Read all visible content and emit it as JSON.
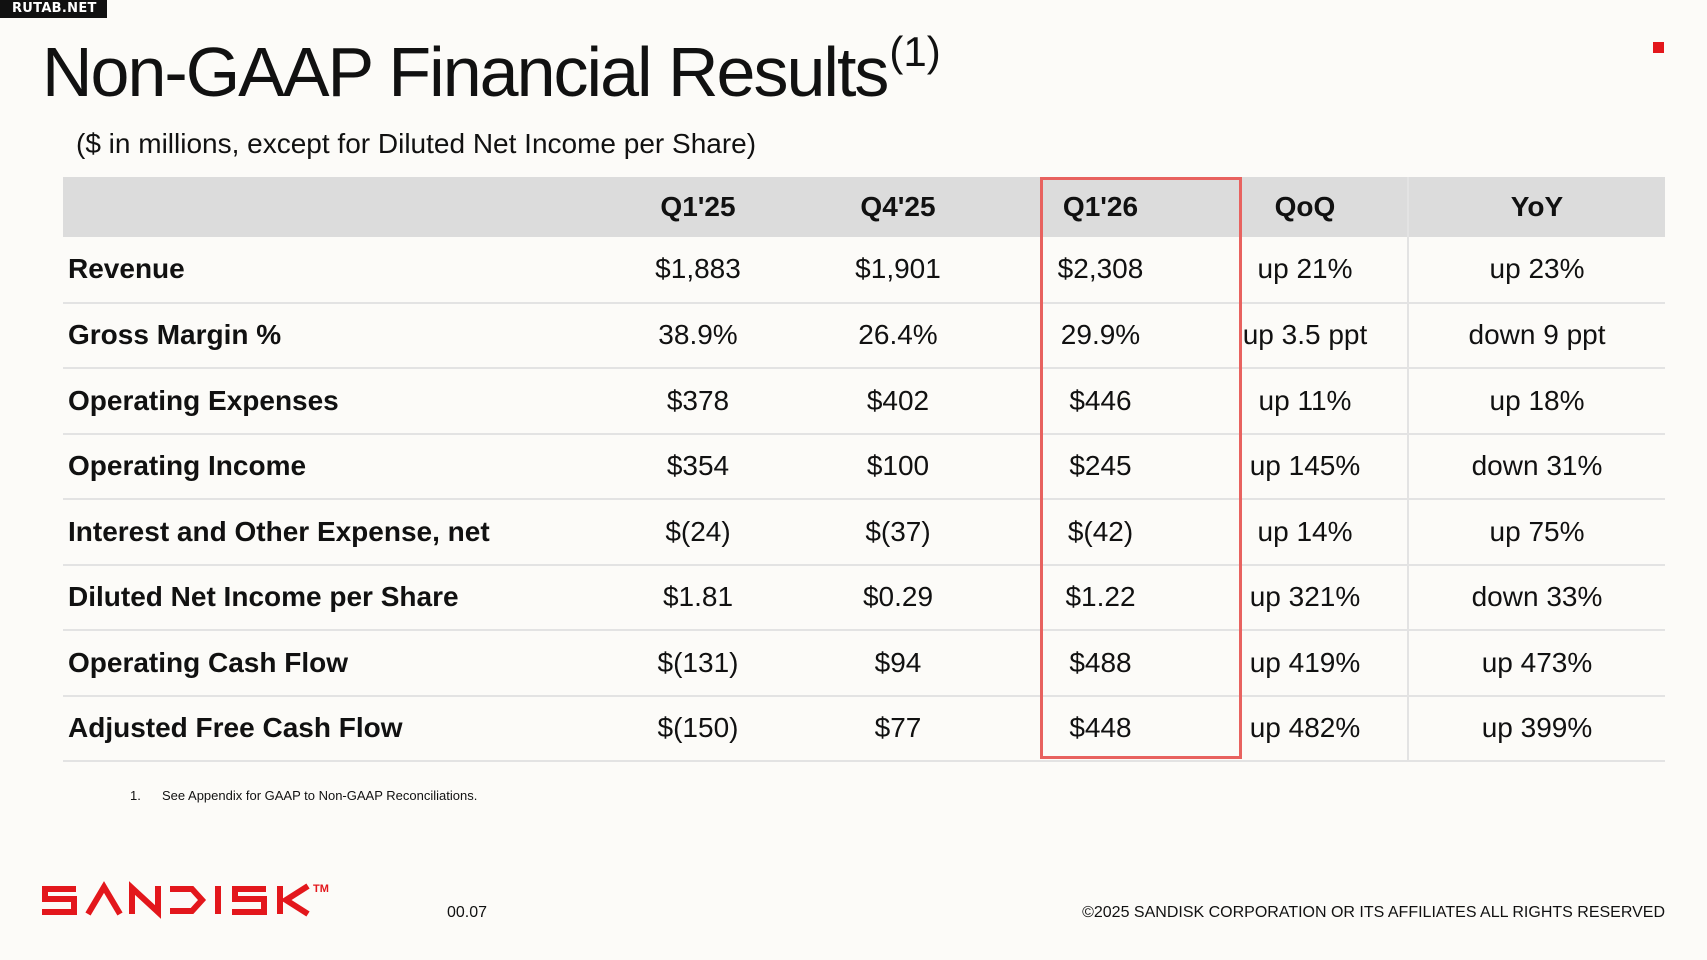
{
  "watermark": "RUTAB.NET",
  "title": {
    "text": "Non-GAAP Financial Results",
    "superscript": "(1)"
  },
  "subtitle": "($ in millions, except for Diluted Net Income per Share)",
  "table": {
    "headers": [
      "",
      "Q1'25",
      "Q4'25",
      "Q1'26",
      "QoQ",
      "YoY"
    ],
    "rows": [
      [
        "Revenue",
        "$1,883",
        "$1,901",
        "$2,308",
        "up 21%",
        "up 23%"
      ],
      [
        "Gross Margin %",
        "38.9%",
        "26.4%",
        "29.9%",
        "up 3.5 ppt",
        "down 9 ppt"
      ],
      [
        "Operating Expenses",
        "$378",
        "$402",
        "$446",
        "up 11%",
        "up 18%"
      ],
      [
        "Operating Income",
        "$354",
        "$100",
        "$245",
        "up 145%",
        "down 31%"
      ],
      [
        "Interest and Other Expense, net",
        "$(24)",
        "$(37)",
        "$(42)",
        "up 14%",
        "up 75%"
      ],
      [
        "Diluted Net Income per Share",
        "$1.81",
        "$0.29",
        "$1.22",
        "up 321%",
        "down 33%"
      ],
      [
        "Operating Cash Flow",
        "$(131)",
        "$94",
        "$488",
        "up 419%",
        "up 473%"
      ],
      [
        "Adjusted Free Cash Flow",
        "$(150)",
        "$77",
        "$448",
        "up 482%",
        "up 399%"
      ]
    ],
    "highlighted_column": "Q1'26"
  },
  "footnote": {
    "number": "1.",
    "text": "See Appendix for GAAP to Non-GAAP Reconciliations."
  },
  "footer": {
    "logo_text": "SANDISK",
    "logo_mark": "TM",
    "slide_number": "00.07",
    "copyright": "©2025 SANDISK CORPORATION OR ITS AFFILIATES ALL RIGHTS RESERVED"
  },
  "colors": {
    "brand_red": "#e3171c",
    "highlight_border": "#e8625f",
    "header_bg": "#dcdcdc",
    "background": "#fcfbf8"
  }
}
